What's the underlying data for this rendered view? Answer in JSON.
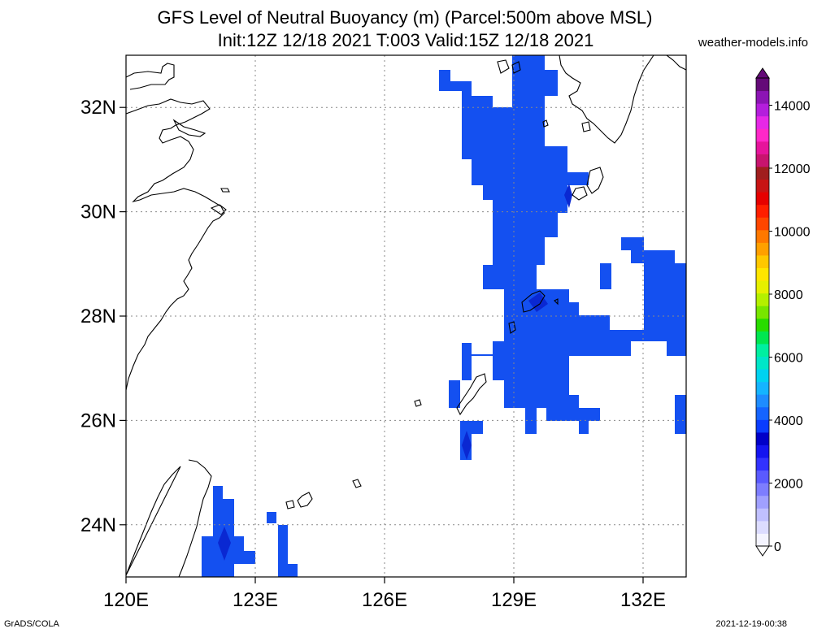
{
  "header": {
    "title_line1": "GFS Level of Neutral Buoyancy (m) (Parcel:500m above MSL)",
    "title_line2": "Init:12Z 12/18 2021 T:003 Valid:15Z 12/18 2021",
    "site": "weather-models.info"
  },
  "footer": {
    "left": "GrADS/COLA",
    "right": "2021-12-19-00:38"
  },
  "map": {
    "lon_range": [
      120,
      133
    ],
    "lat_range": [
      23,
      33
    ],
    "x_ticks": [
      "120E",
      "123E",
      "126E",
      "129E",
      "132E"
    ],
    "y_ticks": [
      "24N",
      "26N",
      "28N",
      "30N",
      "32N"
    ],
    "field_color": "#1450f0",
    "field_color_dark": "#0a28d2"
  },
  "colorbar": {
    "labels": [
      "0",
      "2000",
      "4000",
      "6000",
      "8000",
      "10000",
      "12000",
      "14000"
    ],
    "colors": [
      "#f4f4ff",
      "#dcdcff",
      "#c0c0ff",
      "#a0a0ff",
      "#7d7dff",
      "#5a5aff",
      "#3232ff",
      "#1414f0",
      "#0000c8",
      "#0a3cff",
      "#1464ff",
      "#1e8cff",
      "#14b4ff",
      "#00d2f0",
      "#00e6c8",
      "#00f0a0",
      "#00e650",
      "#28dc00",
      "#78e600",
      "#b4f000",
      "#e6f000",
      "#ffe600",
      "#ffc800",
      "#ffa000",
      "#ff7800",
      "#ff4600",
      "#ff1e00",
      "#e60000",
      "#c81414",
      "#a01e1e",
      "#c8146e",
      "#e6149b",
      "#ff28c8",
      "#e628e6",
      "#b41edc",
      "#8c14b4",
      "#640a78"
    ]
  }
}
